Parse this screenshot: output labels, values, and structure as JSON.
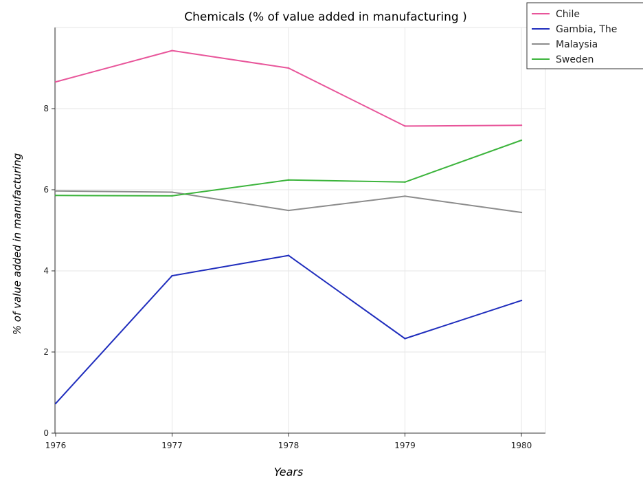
{
  "chart_data": {
    "type": "line",
    "title": "Chemicals (% of value added in manufacturing )",
    "xlabel": "Years",
    "ylabel": "% of value added in manufacturing",
    "x": [
      "1976",
      "1977",
      "1978",
      "1979",
      "1980"
    ],
    "ylim": [
      0,
      10
    ],
    "yticks": [
      0,
      2,
      4,
      6,
      8
    ],
    "grid": true,
    "legend_position": "top-right",
    "series": [
      {
        "name": "Chile",
        "color": "#e8559a",
        "values": [
          8.66,
          9.43,
          9.0,
          7.57,
          7.59
        ]
      },
      {
        "name": "Gambia, The",
        "color": "#1f2dbd",
        "values": [
          0.73,
          3.88,
          4.38,
          2.33,
          3.27
        ]
      },
      {
        "name": "Malaysia",
        "color": "#8c8c8c",
        "values": [
          5.97,
          5.94,
          5.49,
          5.84,
          5.44
        ]
      },
      {
        "name": "Sweden",
        "color": "#3cb43c",
        "values": [
          5.86,
          5.85,
          6.24,
          6.19,
          7.22
        ]
      }
    ]
  }
}
